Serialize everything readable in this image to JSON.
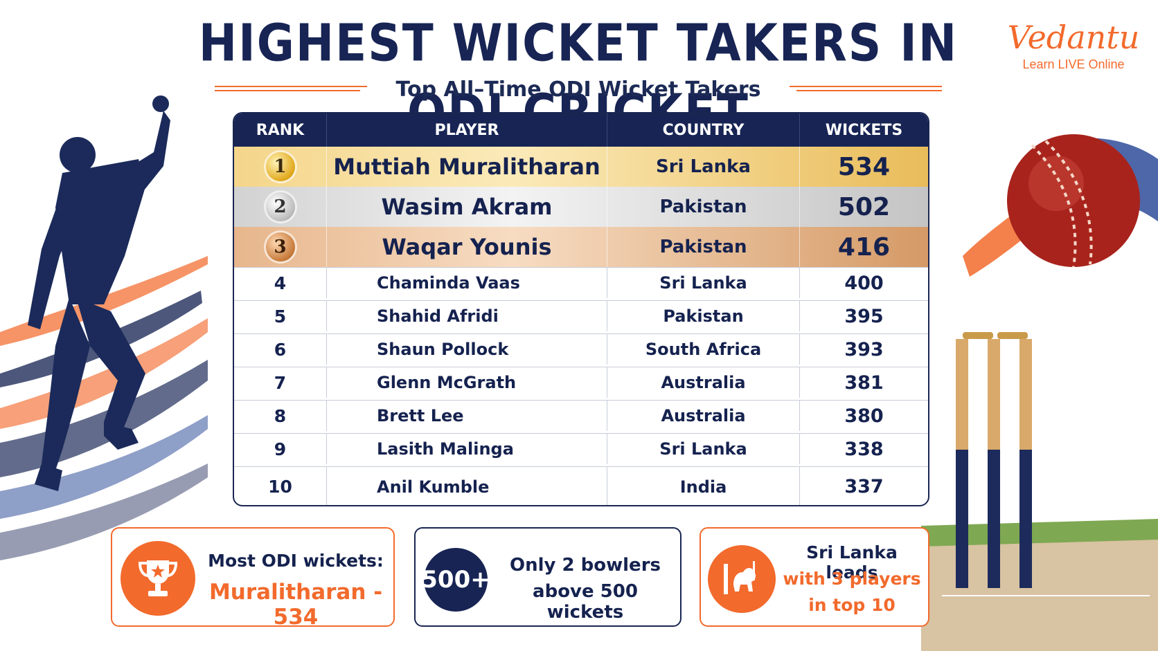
{
  "title": "HIGHEST WICKET TAKERS IN ODI CRICKET",
  "subtitle": "Top All–Time ODI Wicket Takers",
  "logo": {
    "word": "Vedantu",
    "tagline": "Learn LIVE Online"
  },
  "colors": {
    "navy": "#172454",
    "orange": "#f26a2c",
    "gold": "#e9bc5a",
    "silver": "#c4c4c4",
    "bronze": "#d59a66",
    "ball_red": "#a8231c"
  },
  "table": {
    "headers": [
      "RANK",
      "PLAYER",
      "COUNTRY",
      "WICKETS"
    ],
    "top_rows": [
      {
        "rank": "1",
        "player": "Muttiah Muralitharan",
        "country": "Sri Lanka",
        "wickets": "534",
        "medal": "gold-medal-icon"
      },
      {
        "rank": "2",
        "player": "Wasim Akram",
        "country": "Pakistan",
        "wickets": "502",
        "medal": "silver-medal-icon"
      },
      {
        "rank": "3",
        "player": "Waqar Younis",
        "country": "Pakistan",
        "wickets": "416",
        "medal": "bronze-medal-icon"
      }
    ],
    "rows": [
      {
        "rank": "4",
        "player": "Chaminda Vaas",
        "country": "Sri Lanka",
        "wickets": "400"
      },
      {
        "rank": "5",
        "player": "Shahid Afridi",
        "country": "Pakistan",
        "wickets": "395"
      },
      {
        "rank": "6",
        "player": "Shaun Pollock",
        "country": "South Africa",
        "wickets": "393"
      },
      {
        "rank": "7",
        "player": "Glenn McGrath",
        "country": "Australia",
        "wickets": "381"
      },
      {
        "rank": "8",
        "player": "Brett Lee",
        "country": "Australia",
        "wickets": "380"
      },
      {
        "rank": "9",
        "player": "Lasith Malinga",
        "country": "Sri Lanka",
        "wickets": "338"
      },
      {
        "rank": "10",
        "player": "Anil Kumble",
        "country": "India",
        "wickets": "337"
      }
    ]
  },
  "cards": [
    {
      "icon": "trophy-icon",
      "line1": "Most ODI wickets:",
      "line2": "Muralitharan - 534"
    },
    {
      "icon": "badge-icon",
      "badge": "500+",
      "line1": "Only 2 bowlers",
      "line2": "above 500 wickets"
    },
    {
      "icon": "sri-lanka-lion-icon",
      "line1": "Sri Lanka leads",
      "line2": "with 3 players",
      "line3": "in top 10"
    }
  ]
}
